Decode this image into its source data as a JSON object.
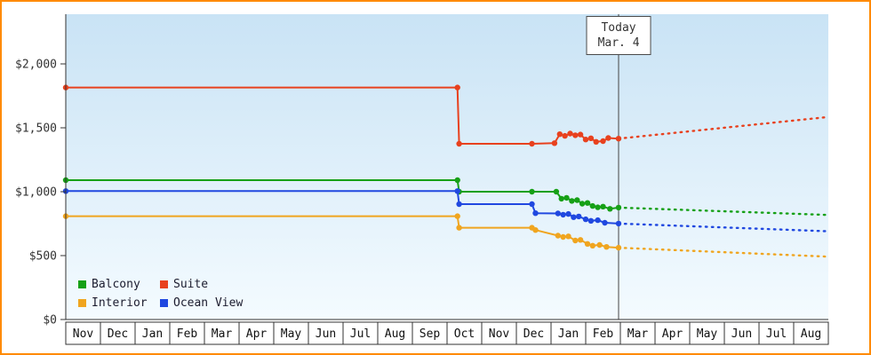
{
  "page": {
    "frame_border_color": "#ff8a00",
    "background_color": "#ffffff",
    "plot_gradient_top": "#c9e3f5",
    "plot_gradient_bottom": "#f4fbff"
  },
  "chart_data": {
    "type": "line",
    "description": "Cruise cabin price history by category with dotted forecast after today marker",
    "today_marker": {
      "line1": "Today",
      "line2": "Mar. 4",
      "month_position": 15.95
    },
    "y_axis": {
      "ylim": [
        0,
        2160
      ],
      "ticks": [
        {
          "value": 2000,
          "label": "$2,000"
        },
        {
          "value": 1500,
          "label": "$1,500"
        },
        {
          "value": 1000,
          "label": "$1,000"
        },
        {
          "value": 500,
          "label": "$500"
        },
        {
          "value": 0,
          "label": "$0"
        }
      ]
    },
    "x_axis": {
      "months": [
        "Nov",
        "Dec",
        "Jan",
        "Feb",
        "Mar",
        "Apr",
        "May",
        "Jun",
        "Jul",
        "Aug",
        "Sep",
        "Oct",
        "Nov",
        "Dec",
        "Jan",
        "Feb",
        "Mar",
        "Apr",
        "May",
        "Jun",
        "Jul",
        "Aug"
      ]
    },
    "legend": {
      "items": [
        {
          "label": "Balcony",
          "color": "#16a016"
        },
        {
          "label": "Suite",
          "color": "#e8411e"
        },
        {
          "label": "Interior",
          "color": "#f0a51f"
        },
        {
          "label": "Ocean View",
          "color": "#2048e0"
        }
      ]
    },
    "series": [
      {
        "name": "Suite",
        "color": "#e8411e",
        "history": [
          [
            0,
            1815
          ],
          [
            11.3,
            1815
          ],
          [
            11.35,
            1375
          ],
          [
            13.45,
            1375
          ],
          [
            14.1,
            1380
          ],
          [
            14.25,
            1450
          ],
          [
            14.4,
            1437
          ],
          [
            14.55,
            1455
          ],
          [
            14.7,
            1442
          ],
          [
            14.85,
            1447
          ],
          [
            15.0,
            1408
          ],
          [
            15.15,
            1418
          ],
          [
            15.3,
            1390
          ],
          [
            15.5,
            1396
          ],
          [
            15.65,
            1420
          ],
          [
            15.95,
            1415
          ]
        ],
        "forecast": [
          [
            15.95,
            1415
          ],
          [
            22,
            1585
          ]
        ]
      },
      {
        "name": "Balcony",
        "color": "#16a016",
        "history": [
          [
            0,
            1090
          ],
          [
            11.3,
            1090
          ],
          [
            11.35,
            1000
          ],
          [
            13.45,
            1000
          ],
          [
            14.15,
            1000
          ],
          [
            14.3,
            945
          ],
          [
            14.45,
            952
          ],
          [
            14.6,
            928
          ],
          [
            14.75,
            934
          ],
          [
            14.9,
            906
          ],
          [
            15.05,
            912
          ],
          [
            15.2,
            888
          ],
          [
            15.35,
            878
          ],
          [
            15.5,
            883
          ],
          [
            15.7,
            866
          ],
          [
            15.95,
            876
          ]
        ],
        "forecast": [
          [
            15.95,
            876
          ],
          [
            22,
            818
          ]
        ]
      },
      {
        "name": "Ocean View",
        "color": "#2048e0",
        "history": [
          [
            0,
            1005
          ],
          [
            11.3,
            1005
          ],
          [
            11.35,
            903
          ],
          [
            13.45,
            903
          ],
          [
            13.55,
            832
          ],
          [
            14.2,
            830
          ],
          [
            14.35,
            820
          ],
          [
            14.5,
            826
          ],
          [
            14.65,
            801
          ],
          [
            14.8,
            806
          ],
          [
            15.0,
            784
          ],
          [
            15.15,
            772
          ],
          [
            15.35,
            777
          ],
          [
            15.55,
            757
          ],
          [
            15.95,
            751
          ]
        ],
        "forecast": [
          [
            15.95,
            751
          ],
          [
            22,
            690
          ]
        ]
      },
      {
        "name": "Interior",
        "color": "#f0a51f",
        "history": [
          [
            0,
            808
          ],
          [
            11.3,
            808
          ],
          [
            11.35,
            718
          ],
          [
            13.45,
            718
          ],
          [
            13.55,
            700
          ],
          [
            14.2,
            656
          ],
          [
            14.35,
            646
          ],
          [
            14.5,
            651
          ],
          [
            14.7,
            618
          ],
          [
            14.85,
            623
          ],
          [
            15.05,
            592
          ],
          [
            15.2,
            578
          ],
          [
            15.4,
            583
          ],
          [
            15.6,
            568
          ],
          [
            15.95,
            562
          ]
        ],
        "forecast": [
          [
            15.95,
            562
          ],
          [
            22,
            492
          ]
        ]
      }
    ]
  }
}
